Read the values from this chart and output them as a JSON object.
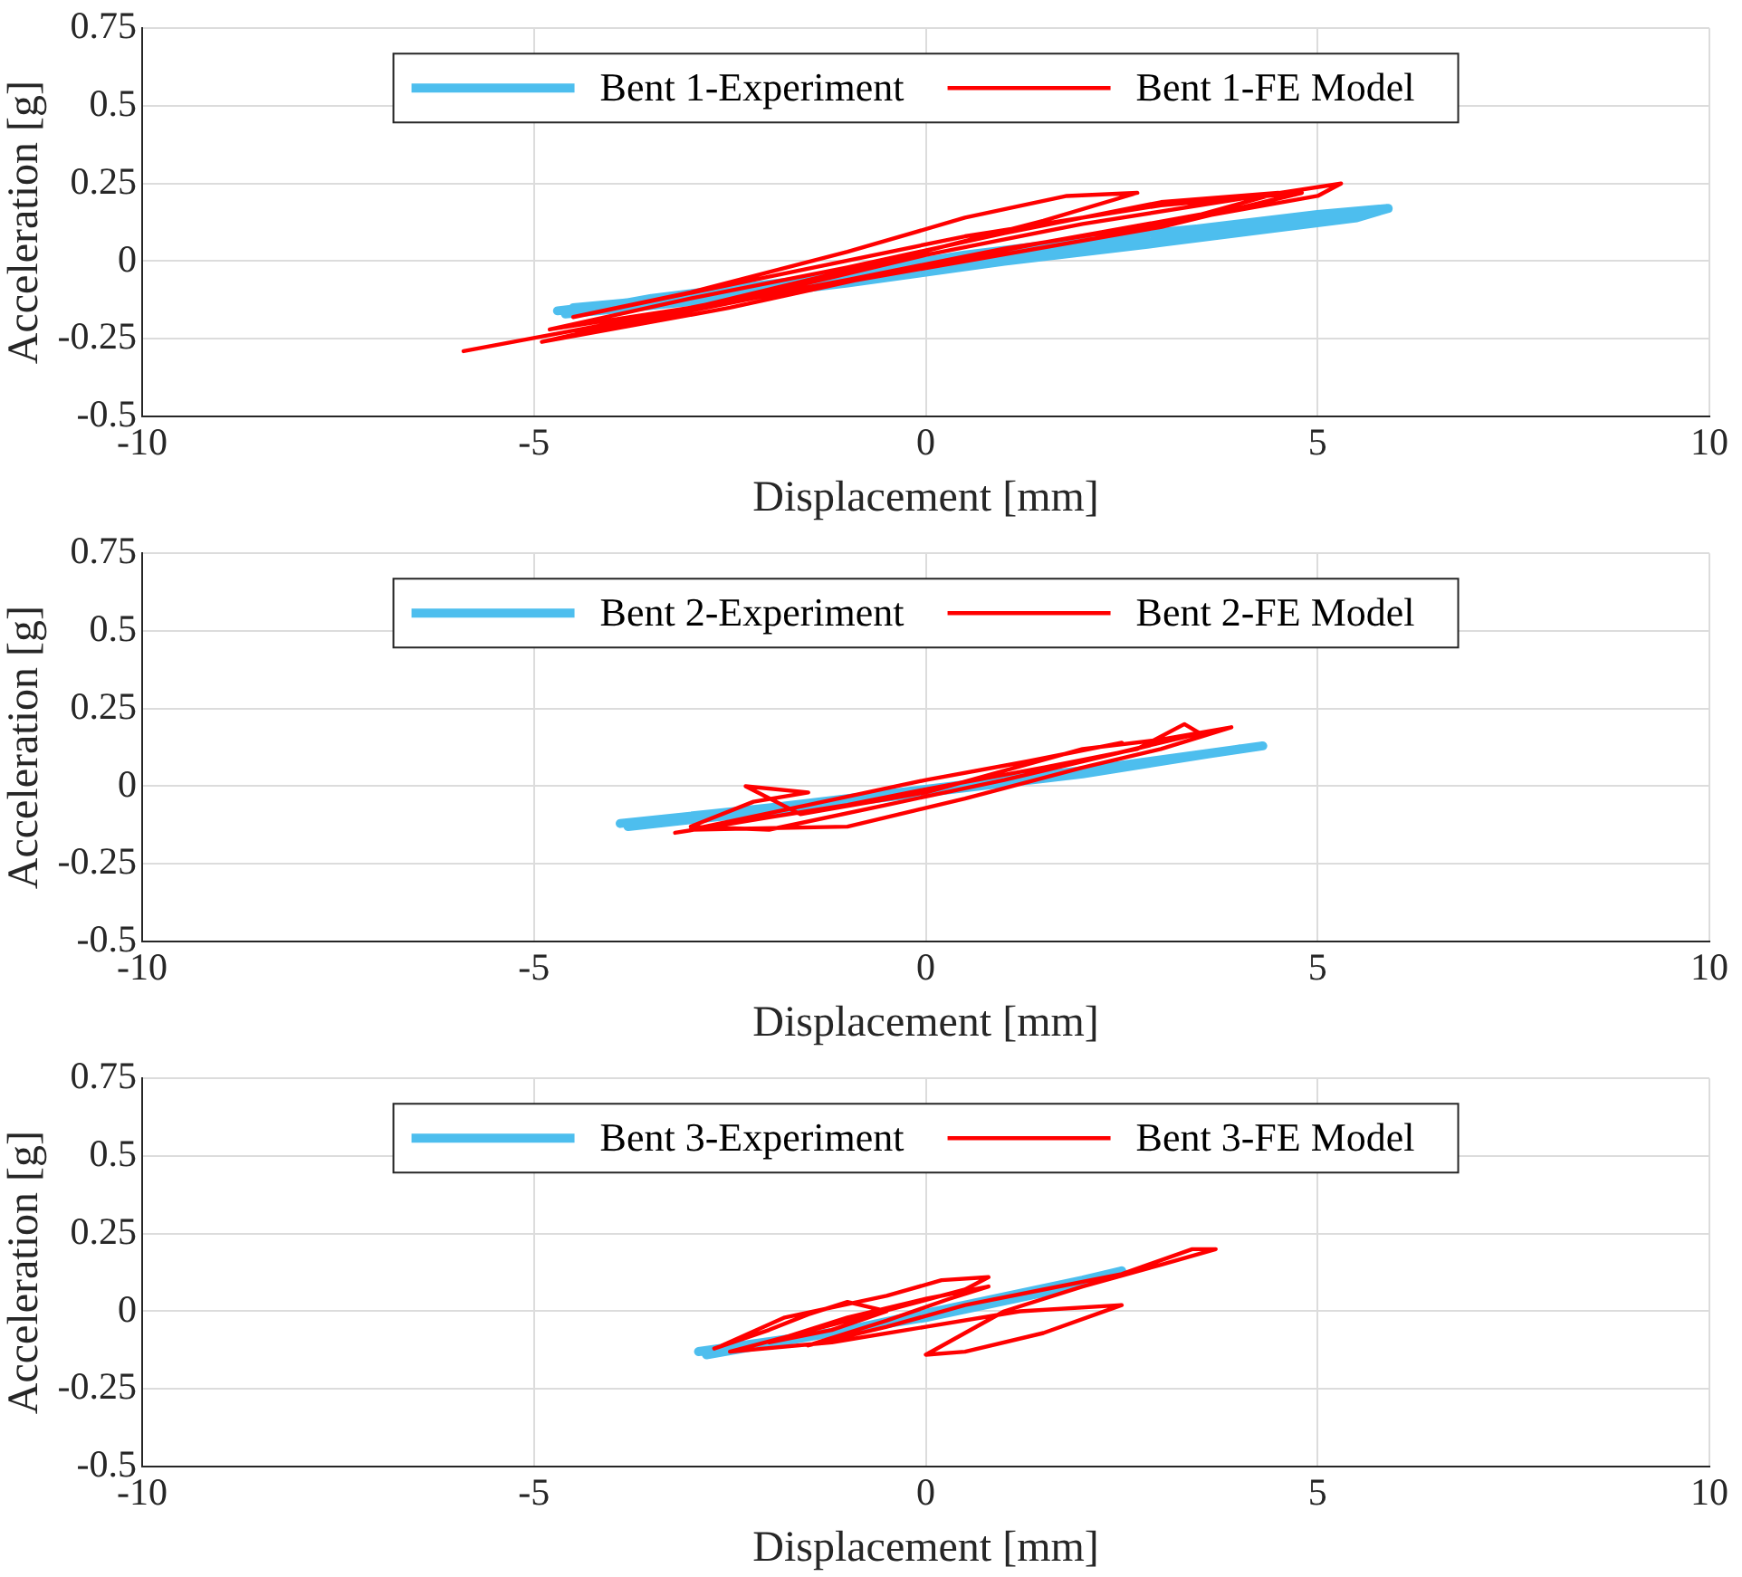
{
  "chart_data": [
    {
      "type": "line",
      "xlabel": "Displacement [mm]",
      "ylabel": "Acceleration [g]",
      "xlim": [
        -10,
        10
      ],
      "xticks": [
        -10,
        -5,
        0,
        5,
        10
      ],
      "ylim": [
        -0.5,
        0.75
      ],
      "yticks": [
        -0.5,
        -0.25,
        0,
        0.25,
        0.5,
        0.75
      ],
      "grid": true,
      "legend": "top",
      "marker": "none",
      "line_style": "solid",
      "series": [
        {
          "name": "Bent 1-Experiment",
          "color": "#4dbeee",
          "x": [
            -4.7,
            -3,
            -1,
            1,
            3,
            5,
            5.9,
            5.5,
            3,
            1,
            -1,
            -3,
            -4.6,
            -3.5,
            -1.5,
            0.5,
            2.5,
            4.5,
            5.6,
            4.8,
            2.8,
            0.8,
            -1.2,
            -3.2,
            -4.5
          ],
          "values": [
            -0.16,
            -0.11,
            -0.05,
            0.03,
            0.09,
            0.15,
            0.17,
            0.14,
            0.06,
            0,
            -0.07,
            -0.13,
            -0.17,
            -0.12,
            -0.06,
            0.02,
            0.08,
            0.13,
            0.16,
            0.12,
            0.06,
            0,
            -0.06,
            -0.12,
            -0.15
          ]
        },
        {
          "name": "Bent 1-FE Model",
          "color": "#ff0000",
          "x": [
            -5.9,
            -4,
            -2,
            0,
            2,
            4,
            5.3,
            5,
            3,
            1,
            -1,
            -2.5,
            -4.8,
            -3,
            -1,
            1,
            3,
            4.5,
            3.5,
            1.5,
            -0.5,
            -2.5,
            -4.9,
            -2.8,
            -0.5,
            1.5,
            2.7,
            1.8,
            0.5,
            -1,
            -3,
            -4.5,
            -2,
            0.5,
            3,
            4.8,
            3,
            0.5,
            -2,
            -4
          ],
          "values": [
            -0.29,
            -0.2,
            -0.1,
            0.02,
            0.12,
            0.2,
            0.25,
            0.21,
            0.12,
            0.04,
            -0.06,
            -0.13,
            -0.22,
            -0.12,
            -0.02,
            0.09,
            0.19,
            0.22,
            0.15,
            0.06,
            -0.04,
            -0.15,
            -0.26,
            -0.14,
            0,
            0.13,
            0.22,
            0.21,
            0.14,
            0.03,
            -0.1,
            -0.18,
            -0.05,
            0.08,
            0.18,
            0.22,
            0.11,
            0,
            -0.11,
            -0.21
          ]
        }
      ]
    },
    {
      "type": "line",
      "xlabel": "Displacement [mm]",
      "ylabel": "Acceleration [g]",
      "xlim": [
        -10,
        10
      ],
      "xticks": [
        -10,
        -5,
        0,
        5,
        10
      ],
      "ylim": [
        -0.5,
        0.75
      ],
      "yticks": [
        -0.5,
        -0.25,
        0,
        0.25,
        0.5,
        0.75
      ],
      "grid": true,
      "legend": "top",
      "marker": "none",
      "line_style": "solid",
      "series": [
        {
          "name": "Bent 2-Experiment",
          "color": "#4dbeee",
          "x": [
            -3.9,
            -2,
            0,
            2,
            4.3,
            3.5,
            1.5,
            -0.5,
            -2.5,
            -3.8,
            -2,
            0,
            2,
            4
          ],
          "values": [
            -0.12,
            -0.07,
            -0.01,
            0.05,
            0.13,
            0.1,
            0.03,
            -0.03,
            -0.09,
            -0.13,
            -0.08,
            -0.02,
            0.04,
            0.12
          ]
        },
        {
          "name": "Bent 2-FE Model",
          "color": "#ff0000",
          "x": [
            -3.2,
            -2,
            -1,
            0,
            1.5,
            2.7,
            3.3,
            3.5,
            2.5,
            1,
            -0.5,
            -2,
            -3,
            -2.2,
            -1.5,
            -2.3,
            -1.6,
            0,
            1,
            2,
            3,
            3.9,
            3,
            2,
            0.5,
            -1,
            -3,
            -1.5,
            0,
            1.3,
            2.5
          ],
          "values": [
            -0.15,
            -0.1,
            -0.06,
            -0.01,
            0.06,
            0.12,
            0.2,
            0.17,
            0.11,
            0.02,
            -0.06,
            -0.14,
            -0.13,
            -0.05,
            -0.02,
            0,
            -0.09,
            -0.02,
            0.05,
            0.12,
            0.15,
            0.19,
            0.12,
            0.06,
            -0.04,
            -0.13,
            -0.14,
            -0.06,
            0.02,
            0.08,
            0.14
          ]
        }
      ]
    },
    {
      "type": "line",
      "xlabel": "Displacement [mm]",
      "ylabel": "Acceleration [g]",
      "xlim": [
        -10,
        10
      ],
      "xticks": [
        -10,
        -5,
        0,
        5,
        10
      ],
      "ylim": [
        -0.5,
        0.75
      ],
      "yticks": [
        -0.5,
        -0.25,
        0,
        0.25,
        0.5,
        0.75
      ],
      "grid": true,
      "legend": "top",
      "marker": "none",
      "line_style": "solid",
      "series": [
        {
          "name": "Bent 3-Experiment",
          "color": "#4dbeee",
          "x": [
            -2.9,
            -1.5,
            0,
            1.5,
            2.5,
            2,
            0.5,
            -1,
            -2.8
          ],
          "values": [
            -0.13,
            -0.08,
            -0.02,
            0.06,
            0.13,
            0.1,
            0.02,
            -0.06,
            -0.14
          ]
        },
        {
          "name": "Bent 3-FE Model",
          "color": "#ff0000",
          "x": [
            -2.7,
            -2,
            -1.5,
            -1,
            -0.5,
            -1.2,
            -2,
            -1,
            0,
            0.8,
            0.3,
            -0.5,
            -1.5,
            -0.5,
            0.5,
            1.5,
            2.5,
            3.4,
            3.7,
            3,
            2,
            1,
            0,
            0.5,
            1.5,
            2.5,
            1.2,
            0,
            -1.2,
            -2.5,
            -1,
            0.5,
            0.8,
            0.2,
            -0.5,
            -1.8,
            -2.6
          ],
          "values": [
            -0.12,
            -0.06,
            -0.01,
            0.03,
            0,
            -0.06,
            -0.1,
            -0.02,
            0.04,
            0.08,
            0.04,
            -0.03,
            -0.11,
            -0.05,
            0.02,
            0.07,
            0.12,
            0.2,
            0.2,
            0.15,
            0.08,
            0,
            -0.14,
            -0.13,
            -0.07,
            0.02,
            0,
            -0.05,
            -0.1,
            -0.13,
            -0.03,
            0.07,
            0.11,
            0.1,
            0.05,
            -0.02,
            -0.11
          ]
        }
      ]
    }
  ]
}
